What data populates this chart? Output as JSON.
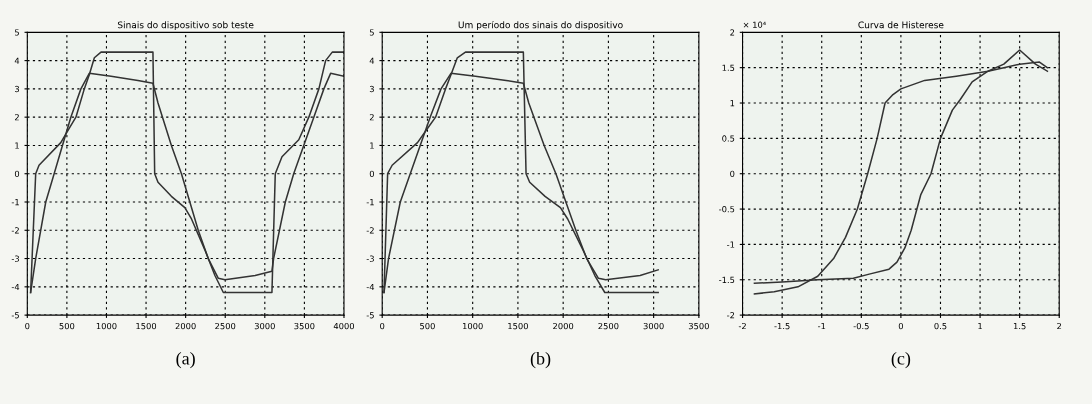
{
  "chart_data": [
    {
      "type": "line",
      "title": "Sinais do dispositivo sob teste",
      "annotations": [
        "(a)"
      ],
      "xlim": [
        0,
        4000
      ],
      "xticks": [
        0,
        500,
        1000,
        1500,
        2000,
        2500,
        3000,
        3500,
        4000
      ],
      "ylim": [
        -5,
        5
      ],
      "yticks": [
        -5,
        -4,
        -3,
        -2,
        -1,
        0,
        1,
        2,
        3,
        4,
        5
      ],
      "grid": true,
      "marker": "none",
      "line_style": "solid",
      "series": [
        {
          "color": "#333333",
          "x": [
            42,
            106,
            148,
            423,
            529,
            614,
            720,
            783,
            847,
            931,
            1587,
            1609,
            1651,
            1820,
            1990,
            2074,
            2244,
            2370,
            2476,
            3090,
            3132,
            3217,
            3429,
            3556,
            3683,
            3768,
            3852,
            4000
          ],
          "values": [
            -4.2,
            0,
            0.3,
            1.1,
            1.6,
            2,
            3,
            3.5,
            4.1,
            4.3,
            4.3,
            0,
            -0.3,
            -0.8,
            -1.2,
            -1.6,
            -2.7,
            -3.6,
            -4.2,
            -4.2,
            0,
            0.6,
            1.2,
            2,
            3,
            4,
            4.3,
            4.3
          ]
        },
        {
          "color": "#333333",
          "x": [
            42,
            106,
            233,
            339,
            444,
            550,
            677,
            783,
            1058,
            1397,
            1587,
            1651,
            1820,
            1947,
            2053,
            2159,
            2286,
            2413,
            2497,
            2878,
            3090,
            3111,
            3259,
            3365,
            3492,
            3619,
            3746,
            3831,
            4000
          ],
          "values": [
            -4.2,
            -3,
            -1,
            0,
            1,
            2,
            3,
            3.55,
            3.45,
            3.3,
            3.2,
            2.5,
            1,
            0,
            -1,
            -2,
            -3,
            -3.7,
            -3.75,
            -3.6,
            -3.45,
            -3,
            -1,
            0,
            1,
            2,
            3,
            3.55,
            3.45
          ]
        }
      ]
    },
    {
      "type": "line",
      "title": "Um período dos sinais do dispositivo",
      "annotations": [
        "(b)"
      ],
      "xlim": [
        0,
        3500
      ],
      "xticks": [
        0,
        500,
        1000,
        1500,
        2000,
        2500,
        3000,
        3500
      ],
      "ylim": [
        -5,
        5
      ],
      "yticks": [
        -5,
        -4,
        -3,
        -2,
        -1,
        0,
        1,
        2,
        3,
        4,
        5
      ],
      "grid": true,
      "marker": "none",
      "line_style": "solid",
      "series": [
        {
          "color": "#333333",
          "x": [
            20,
            60,
            110,
            390,
            500,
            590,
            700,
            760,
            830,
            920,
            1560,
            1590,
            1630,
            1800,
            1970,
            2050,
            2220,
            2350,
            2460,
            3050
          ],
          "values": [
            -4.2,
            0,
            0.3,
            1.1,
            1.6,
            2,
            3,
            3.5,
            4.1,
            4.3,
            4.3,
            0,
            -0.3,
            -0.8,
            -1.2,
            -1.6,
            -2.7,
            -3.6,
            -4.2,
            -4.2
          ]
        },
        {
          "color": "#333333",
          "x": [
            20,
            70,
            200,
            310,
            420,
            530,
            650,
            760,
            1030,
            1370,
            1560,
            1620,
            1790,
            1920,
            2030,
            2140,
            2260,
            2390,
            2470,
            2850,
            3050
          ],
          "values": [
            -4.2,
            -3,
            -1,
            0,
            1,
            2,
            3,
            3.55,
            3.45,
            3.3,
            3.2,
            2.5,
            1,
            0,
            -1,
            -2,
            -3,
            -3.7,
            -3.75,
            -3.6,
            -3.4
          ]
        }
      ]
    },
    {
      "type": "line",
      "title": "Curva de Histerese",
      "annotations": [
        "× 10⁴",
        "(c)"
      ],
      "xlim": [
        -2,
        2
      ],
      "xticks": [
        -2,
        -1.5,
        -1,
        -0.5,
        0,
        0.5,
        1,
        1.5,
        2
      ],
      "ylim": [
        -2,
        2
      ],
      "yticks": [
        -2,
        -1.5,
        -1,
        -0.5,
        0,
        0.5,
        1,
        1.5,
        2
      ],
      "grid": true,
      "marker": "none",
      "line_style": "solid",
      "series": [
        {
          "color": "#333333",
          "x": [
            -1.85,
            -1.5,
            -1.05,
            -0.6,
            -0.4,
            -0.15,
            -0.05,
            0.05,
            0.13,
            0.25,
            0.38,
            0.5,
            0.65,
            0.75,
            0.9,
            1.1,
            1.3,
            1.5,
            1.75,
            1.85
          ],
          "values": [
            -1.55,
            -1.53,
            -1.5,
            -1.48,
            -1.42,
            -1.35,
            -1.25,
            -1.05,
            -0.8,
            -0.3,
            0,
            0.5,
            0.9,
            1.05,
            1.3,
            1.45,
            1.5,
            1.55,
            1.58,
            1.5
          ]
        },
        {
          "color": "#333333",
          "x": [
            1.85,
            1.7,
            1.5,
            1.3,
            1.1,
            0.7,
            0.3,
            0,
            -0.1,
            -0.2,
            -0.3,
            -0.42,
            -0.55,
            -0.7,
            -0.85,
            -1.05,
            -1.3,
            -1.6,
            -1.85
          ],
          "values": [
            1.45,
            1.55,
            1.75,
            1.55,
            1.45,
            1.38,
            1.32,
            1.2,
            1.12,
            1.0,
            0.5,
            0,
            -0.5,
            -0.9,
            -1.2,
            -1.45,
            -1.6,
            -1.67,
            -1.7
          ]
        }
      ]
    }
  ]
}
